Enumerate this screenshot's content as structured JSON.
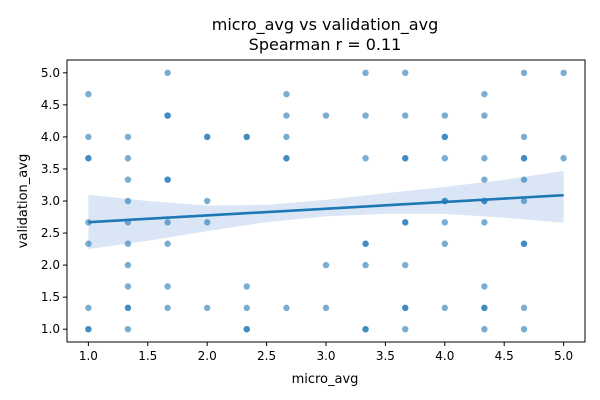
{
  "chart_data": {
    "type": "scatter",
    "title": "micro_avg vs validation_avg",
    "subtitle": "Spearman r = 0.11",
    "xlabel": "micro_avg",
    "ylabel": "validation_avg",
    "xlim": [
      0.82,
      5.18
    ],
    "ylim": [
      0.8,
      5.2
    ],
    "xticks": [
      "1.0",
      "1.5",
      "2.0",
      "2.5",
      "3.0",
      "3.5",
      "4.0",
      "4.5",
      "5.0"
    ],
    "yticks": [
      "1.0",
      "1.5",
      "2.0",
      "2.5",
      "3.0",
      "3.5",
      "4.0",
      "4.5",
      "5.0"
    ],
    "grid": false,
    "point_color": "#1f77b4",
    "line_color": "#1f77b4",
    "band_color": "#aec7e8",
    "points": [
      [
        1.0,
        4.667
      ],
      [
        1.0,
        4.0
      ],
      [
        1.0,
        3.667
      ],
      [
        1.0,
        3.667
      ],
      [
        1.0,
        2.667
      ],
      [
        1.0,
        2.333
      ],
      [
        1.0,
        1.333
      ],
      [
        1.0,
        1.0
      ],
      [
        1.0,
        1.0
      ],
      [
        1.333,
        4.0
      ],
      [
        1.333,
        3.667
      ],
      [
        1.333,
        3.333
      ],
      [
        1.333,
        3.0
      ],
      [
        1.333,
        2.667
      ],
      [
        1.333,
        2.333
      ],
      [
        1.333,
        2.0
      ],
      [
        1.333,
        1.667
      ],
      [
        1.333,
        1.333
      ],
      [
        1.333,
        1.333
      ],
      [
        1.333,
        1.0
      ],
      [
        1.667,
        5.0
      ],
      [
        1.667,
        4.333
      ],
      [
        1.667,
        4.333
      ],
      [
        1.667,
        3.333
      ],
      [
        1.667,
        3.333
      ],
      [
        1.667,
        2.667
      ],
      [
        1.667,
        2.333
      ],
      [
        1.667,
        1.667
      ],
      [
        1.667,
        1.333
      ],
      [
        2.0,
        4.0
      ],
      [
        2.0,
        4.0
      ],
      [
        2.0,
        3.0
      ],
      [
        2.0,
        2.667
      ],
      [
        2.0,
        1.333
      ],
      [
        2.333,
        4.0
      ],
      [
        2.333,
        4.0
      ],
      [
        2.333,
        1.667
      ],
      [
        2.333,
        1.333
      ],
      [
        2.333,
        1.0
      ],
      [
        2.333,
        1.0
      ],
      [
        2.667,
        4.667
      ],
      [
        2.667,
        4.333
      ],
      [
        2.667,
        4.0
      ],
      [
        2.667,
        3.667
      ],
      [
        2.667,
        3.667
      ],
      [
        2.667,
        1.333
      ],
      [
        3.0,
        4.333
      ],
      [
        3.0,
        2.0
      ],
      [
        3.0,
        1.333
      ],
      [
        3.333,
        5.0
      ],
      [
        3.333,
        4.333
      ],
      [
        3.333,
        3.667
      ],
      [
        3.333,
        2.333
      ],
      [
        3.333,
        2.333
      ],
      [
        3.333,
        2.0
      ],
      [
        3.333,
        1.0
      ],
      [
        3.333,
        1.0
      ],
      [
        3.667,
        5.0
      ],
      [
        3.667,
        4.333
      ],
      [
        3.667,
        3.667
      ],
      [
        3.667,
        3.667
      ],
      [
        3.667,
        2.667
      ],
      [
        3.667,
        2.667
      ],
      [
        3.667,
        2.0
      ],
      [
        3.667,
        1.333
      ],
      [
        3.667,
        1.333
      ],
      [
        3.667,
        1.0
      ],
      [
        4.0,
        4.333
      ],
      [
        4.0,
        4.0
      ],
      [
        4.0,
        4.0
      ],
      [
        4.0,
        3.667
      ],
      [
        4.0,
        3.0
      ],
      [
        4.0,
        3.0
      ],
      [
        4.0,
        2.667
      ],
      [
        4.0,
        2.333
      ],
      [
        4.0,
        1.333
      ],
      [
        4.333,
        4.667
      ],
      [
        4.333,
        4.333
      ],
      [
        4.333,
        3.667
      ],
      [
        4.333,
        3.333
      ],
      [
        4.333,
        3.0
      ],
      [
        4.333,
        3.0
      ],
      [
        4.333,
        2.667
      ],
      [
        4.333,
        1.667
      ],
      [
        4.333,
        1.333
      ],
      [
        4.333,
        1.333
      ],
      [
        4.333,
        1.0
      ],
      [
        4.667,
        5.0
      ],
      [
        4.667,
        4.0
      ],
      [
        4.667,
        3.667
      ],
      [
        4.667,
        3.667
      ],
      [
        4.667,
        3.333
      ],
      [
        4.667,
        3.0
      ],
      [
        4.667,
        2.333
      ],
      [
        4.667,
        2.333
      ],
      [
        4.667,
        1.333
      ],
      [
        4.667,
        1.0
      ],
      [
        5.0,
        5.0
      ],
      [
        5.0,
        3.667
      ]
    ],
    "regression": {
      "x": [
        1.0,
        5.0
      ],
      "y": [
        2.67,
        3.09
      ]
    },
    "confidence_band": {
      "x": [
        1.0,
        1.5,
        2.0,
        2.5,
        3.0,
        3.5,
        4.0,
        4.5,
        5.0
      ],
      "upper": [
        3.1,
        3.0,
        2.93,
        2.94,
        3.02,
        3.12,
        3.22,
        3.33,
        3.47
      ],
      "lower": [
        2.25,
        2.38,
        2.53,
        2.67,
        2.76,
        2.8,
        2.8,
        2.74,
        2.66
      ]
    }
  }
}
